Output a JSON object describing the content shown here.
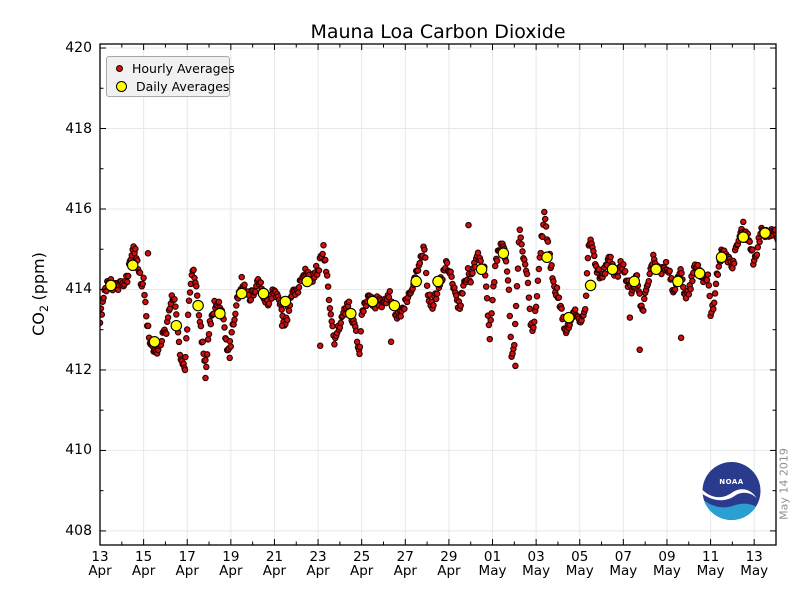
{
  "title": "Mauna Loa Carbon Dioxide",
  "watermark": "May 14 2019",
  "legend": {
    "position": "upper left",
    "items": [
      {
        "label": "Hourly Averages",
        "marker": "small-red-dot"
      },
      {
        "label": "Daily Averages",
        "marker": "yellow-circle"
      }
    ]
  },
  "y_axis": {
    "label_prefix": "CO",
    "label_sub": "2",
    "label_suffix": "(ppm)",
    "min": 407.65,
    "max": 420.1,
    "major_ticks": [
      420,
      418,
      416,
      414,
      412,
      410,
      408
    ],
    "minor_step": 1
  },
  "x_axis": {
    "days_total": 31,
    "start_date": "Apr 13 2019",
    "end_date": "May 14 2019",
    "ticks": [
      {
        "day": "13",
        "month": "Apr",
        "offset": 0
      },
      {
        "day": "15",
        "month": "Apr",
        "offset": 2
      },
      {
        "day": "17",
        "month": "Apr",
        "offset": 4
      },
      {
        "day": "19",
        "month": "Apr",
        "offset": 6
      },
      {
        "day": "21",
        "month": "Apr",
        "offset": 8
      },
      {
        "day": "23",
        "month": "Apr",
        "offset": 10
      },
      {
        "day": "25",
        "month": "Apr",
        "offset": 12
      },
      {
        "day": "27",
        "month": "Apr",
        "offset": 14
      },
      {
        "day": "29",
        "month": "Apr",
        "offset": 16
      },
      {
        "day": "01",
        "month": "May",
        "offset": 18
      },
      {
        "day": "03",
        "month": "May",
        "offset": 20
      },
      {
        "day": "05",
        "month": "May",
        "offset": 22
      },
      {
        "day": "07",
        "month": "May",
        "offset": 24
      },
      {
        "day": "09",
        "month": "May",
        "offset": 26
      },
      {
        "day": "11",
        "month": "May",
        "offset": 28
      },
      {
        "day": "13",
        "month": "May",
        "offset": 30
      }
    ]
  },
  "logo": {
    "text": "NOAA"
  },
  "colors": {
    "hourly_fill": "#d01010",
    "hourly_edge": "#2a0000",
    "daily_fill": "#ffff00",
    "daily_edge": "#000000",
    "grid": "#e8e8e8",
    "spine": "#000000",
    "logo_navy": "#2a3a8c",
    "logo_cyan": "#2aa0d2",
    "watermark_gray": "#8f8f8f"
  },
  "chart_data": {
    "type": "scatter",
    "title": "Mauna Loa Carbon Dioxide",
    "xlabel": "",
    "ylabel": "CO2 (ppm)",
    "ylim": [
      407.65,
      420.1
    ],
    "grid": true,
    "x_start": "2019-04-13",
    "x_end": "2019-05-14",
    "dates": [
      "Apr 13",
      "Apr 14",
      "Apr 15",
      "Apr 16",
      "Apr 17",
      "Apr 18",
      "Apr 19",
      "Apr 20",
      "Apr 21",
      "Apr 22",
      "Apr 23",
      "Apr 24",
      "Apr 25",
      "Apr 26",
      "Apr 27",
      "Apr 28",
      "Apr 29",
      "Apr 30",
      "May 01",
      "May 02",
      "May 03",
      "May 04",
      "May 05",
      "May 06",
      "May 07",
      "May 08",
      "May 09",
      "May 10",
      "May 11",
      "May 12",
      "May 13"
    ],
    "daily_averages": [
      414.1,
      414.6,
      412.7,
      413.1,
      413.6,
      413.4,
      413.9,
      413.9,
      413.7,
      414.2,
      null,
      413.4,
      413.7,
      413.6,
      414.2,
      414.2,
      null,
      414.5,
      414.9,
      null,
      414.8,
      413.3,
      414.1,
      414.5,
      414.2,
      414.5,
      414.2,
      414.4,
      414.8,
      415.3,
      415.4
    ],
    "hourly": {
      "note": "3-hour anchor values per day (hours 0,3,6,9,12,15,18,21); rendered at hourly resolution",
      "jitter": 0.13,
      "anchors_3h_by_day": [
        [
          413.3,
          413.6,
          414.0,
          414.2,
          414.15,
          414.0,
          414.05,
          414.15
        ],
        [
          414.2,
          414.05,
          414.3,
          414.7,
          415.05,
          414.9,
          414.5,
          414.2
        ],
        [
          414.2,
          413.4,
          412.8,
          412.55,
          412.45,
          412.5,
          412.65,
          412.9
        ],
        [
          412.9,
          413.2,
          413.7,
          413.85,
          413.3,
          412.6,
          412.2,
          412.05
        ],
        [
          413.1,
          413.9,
          414.5,
          414.2,
          413.6,
          413.0,
          412.45,
          412.0
        ],
        [
          413.0,
          413.3,
          413.6,
          413.7,
          413.5,
          413.3,
          412.9,
          412.4
        ],
        [
          412.7,
          413.2,
          413.6,
          414.0,
          414.2,
          414.05,
          413.9,
          413.85
        ],
        [
          413.9,
          414.05,
          414.2,
          414.1,
          413.9,
          413.75,
          413.7,
          413.9
        ],
        [
          414.0,
          413.85,
          413.65,
          413.4,
          413.15,
          413.45,
          413.7,
          413.9
        ],
        [
          413.95,
          414.1,
          414.25,
          414.45,
          414.5,
          414.3,
          414.2,
          414.5
        ],
        [
          414.5,
          414.8,
          415.0,
          414.5,
          413.8,
          413.2,
          412.65,
          412.9
        ],
        [
          413.1,
          413.3,
          413.5,
          413.65,
          413.4,
          413.15,
          412.9,
          412.4
        ],
        [
          413.3,
          413.55,
          413.8,
          413.9,
          413.7,
          413.6,
          413.75,
          413.65
        ],
        [
          413.6,
          413.75,
          413.9,
          413.7,
          413.5,
          413.3,
          413.4,
          413.55
        ],
        [
          413.65,
          413.8,
          414.0,
          414.2,
          414.4,
          414.6,
          414.85,
          415.05
        ],
        [
          414.0,
          413.75,
          413.6,
          413.8,
          414.0,
          414.2,
          414.4,
          414.6
        ],
        [
          414.55,
          414.3,
          413.95,
          413.7,
          413.6,
          413.9,
          414.2,
          414.4
        ],
        [
          414.2,
          414.5,
          414.75,
          414.8,
          414.6,
          414.45,
          413.8,
          412.8
        ],
        [
          413.8,
          414.5,
          414.9,
          415.1,
          415.0,
          414.8,
          414.0,
          412.4
        ],
        [
          412.5,
          414.2,
          415.5,
          415.0,
          414.6,
          414.1,
          413.2,
          412.95
        ],
        [
          413.6,
          414.4,
          415.2,
          415.9,
          415.3,
          414.8,
          414.35,
          414.0
        ],
        [
          413.9,
          413.6,
          413.25,
          412.95,
          413.05,
          413.25,
          413.45,
          413.35
        ],
        [
          413.25,
          413.4,
          413.5,
          414.8,
          415.3,
          414.9,
          414.6,
          414.4
        ],
        [
          414.25,
          414.45,
          414.65,
          414.8,
          414.5,
          414.3,
          414.4,
          414.6
        ],
        [
          414.5,
          414.3,
          414.1,
          413.9,
          414.2,
          414.35,
          413.8,
          413.4
        ],
        [
          413.9,
          414.2,
          414.5,
          414.8,
          414.6,
          414.45,
          414.5,
          414.65
        ],
        [
          414.5,
          414.35,
          414.1,
          413.9,
          414.2,
          414.4,
          414.1,
          413.8
        ],
        [
          414.0,
          414.2,
          414.45,
          414.6,
          414.45,
          414.3,
          414.2,
          414.35
        ],
        [
          413.4,
          413.6,
          414.1,
          414.6,
          414.9,
          415.0,
          414.85,
          414.65
        ],
        [
          414.5,
          414.9,
          415.2,
          415.45,
          415.55,
          415.4,
          415.2,
          415.0
        ],
        [
          414.6,
          414.95,
          415.3,
          415.5,
          415.4,
          415.3,
          415.35,
          415.45
        ],
        [
          415.35
        ]
      ],
      "outliers": [
        [
          2.2,
          414.9
        ],
        [
          3.9,
          412.0
        ],
        [
          4.84,
          411.8
        ],
        [
          5.95,
          412.3
        ],
        [
          8.35,
          413.1
        ],
        [
          10.1,
          412.6
        ],
        [
          11.9,
          412.4
        ],
        [
          13.35,
          412.7
        ],
        [
          16.9,
          415.6
        ],
        [
          19.05,
          412.1
        ],
        [
          24.3,
          413.3
        ],
        [
          24.75,
          412.5
        ],
        [
          26.65,
          412.8
        ]
      ]
    }
  }
}
